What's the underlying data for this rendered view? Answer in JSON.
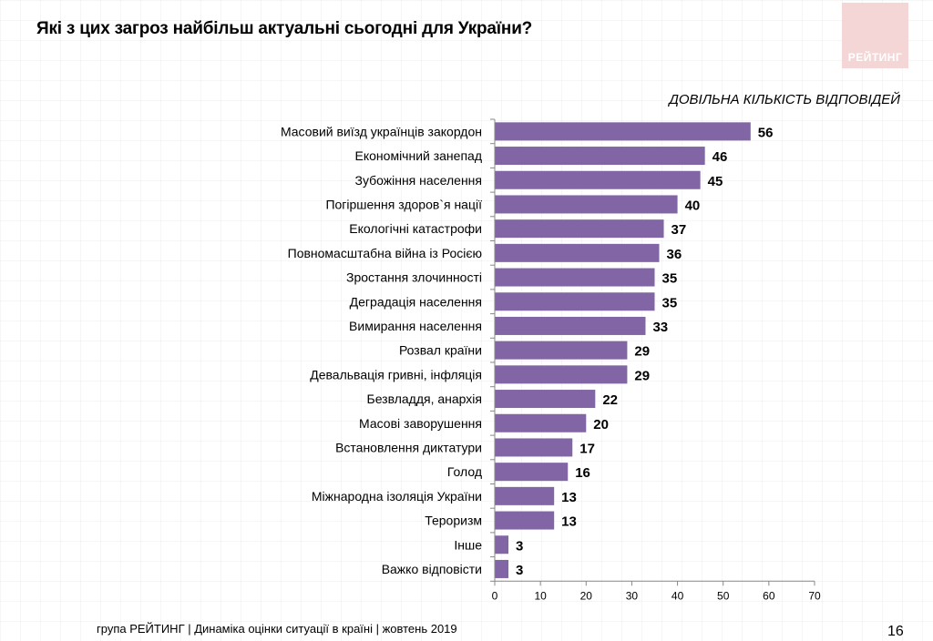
{
  "page": {
    "title": "Які з цих загроз найбільш актуальні сьогодні для України?",
    "logo_text": "РЕЙТИНГ",
    "subtitle": "ДОВІЛЬНА КІЛЬКІСТЬ ВІДПОВІДЕЙ",
    "footer": "група РЕЙТИНГ |  Динаміка оцінки ситуації в країні  |  жовтень  2019",
    "page_number": "16"
  },
  "colors": {
    "bar": "#8165a4",
    "axis": "#888888",
    "logo_bg": "#f4d6d6"
  },
  "chart_data": {
    "type": "bar",
    "orientation": "horizontal",
    "title": "Які з цих загроз найбільш актуальні сьогодні для України?",
    "subtitle": "ДОВІЛЬНА КІЛЬКІСТЬ ВІДПОВІДЕЙ",
    "categories": [
      "Масовий виїзд українців закордон",
      "Економічний занепад",
      "Зубожіння населення",
      "Погіршення здоров`я нації",
      "Екологічні катастрофи",
      "Повномасштабна війна із Росією",
      "Зростання злочинності",
      "Деградація населення",
      "Вимирання населення",
      "Розвал країни",
      "Девальвація гривні, інфляція",
      "Безвладдя, анархія",
      "Масові заворушення",
      "Встановлення диктатури",
      "Голод",
      "Міжнародна ізоляція України",
      "Тероризм",
      "Інше",
      "Важко відповісти"
    ],
    "values": [
      56,
      46,
      45,
      40,
      37,
      36,
      35,
      35,
      33,
      29,
      29,
      22,
      20,
      17,
      16,
      13,
      13,
      3,
      3
    ],
    "xlim": [
      0,
      70
    ],
    "xticks": [
      0,
      10,
      20,
      30,
      40,
      50,
      60,
      70
    ],
    "xlabel": "",
    "ylabel": "",
    "grid": false,
    "legend": "none"
  }
}
